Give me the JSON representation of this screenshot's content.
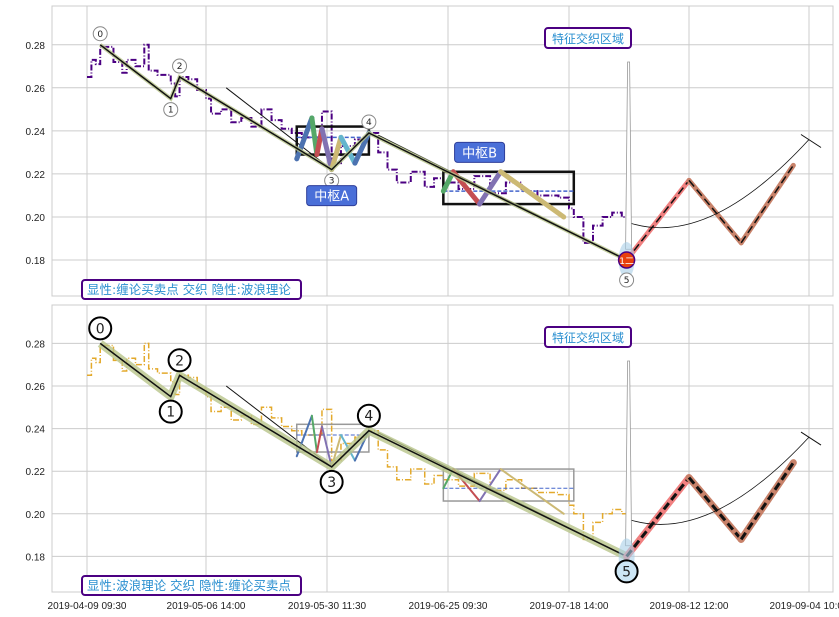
{
  "chart_data": [
    {
      "type": "line",
      "panel": "top",
      "annotation_label": "显性:缠论买卖点 交织 隐性:波浪理论",
      "zone_label": "特征交织区域",
      "zhongshu_labels": [
        "中枢A",
        "中枢B"
      ],
      "price_color": "#4b0082",
      "wave_point_marker": "1二",
      "wave_label_style": "small"
    },
    {
      "type": "line",
      "panel": "bottom",
      "annotation_label": "显性:波浪理论 交织 隐性:缠论买卖点",
      "zone_label": "特征交织区域",
      "zhongshu_labels": [],
      "price_color": "#e3a92b",
      "wave_label_style": "large"
    }
  ],
  "shared": {
    "ylim": [
      0.1633,
      0.298
    ],
    "xlim": [
      "2019-04-01",
      "2019-09-08"
    ],
    "y_ticks": [
      "0.18",
      "0.20",
      "0.22",
      "0.24",
      "0.26",
      "0.28"
    ],
    "x_ticks": [
      {
        "date": "2019-04-09",
        "label": "2019-04-09 09:30"
      },
      {
        "date": "2019-05-06",
        "label": "2019-05-06 14:00"
      },
      {
        "date": "2019-05-30",
        "label": "2019-05-30 11:30"
      },
      {
        "date": "2019-06-25",
        "label": "2019-06-25 09:30"
      },
      {
        "date": "2019-07-18",
        "label": "2019-07-18 14:00"
      },
      {
        "date": "2019-08-12",
        "label": "2019-08-12 12:00"
      },
      {
        "date": "2019-09-04",
        "label": "2019-09-04 10:00"
      }
    ],
    "grid": true,
    "price": [
      [
        "2019-04-09",
        0.265
      ],
      [
        "2019-04-10",
        0.273
      ],
      [
        "2019-04-11",
        0.271
      ],
      [
        "2019-04-12",
        0.279
      ],
      [
        "2019-04-15",
        0.272
      ],
      [
        "2019-04-17",
        0.267
      ],
      [
        "2019-04-18",
        0.273
      ],
      [
        "2019-04-20",
        0.27
      ],
      [
        "2019-04-22",
        0.28
      ],
      [
        "2019-04-23",
        0.268
      ],
      [
        "2019-04-25",
        0.266
      ],
      [
        "2019-04-27",
        0.266
      ],
      [
        "2019-04-28",
        0.262
      ],
      [
        "2019-04-29",
        0.256
      ],
      [
        "2019-04-30",
        0.265
      ],
      [
        "2019-05-02",
        0.264
      ],
      [
        "2019-05-04",
        0.259
      ],
      [
        "2019-05-06",
        0.255
      ],
      [
        "2019-05-07",
        0.248
      ],
      [
        "2019-05-09",
        0.25
      ],
      [
        "2019-05-11",
        0.244
      ],
      [
        "2019-05-13",
        0.246
      ],
      [
        "2019-05-15",
        0.242
      ],
      [
        "2019-05-17",
        0.25
      ],
      [
        "2019-05-19",
        0.245
      ],
      [
        "2019-05-21",
        0.241
      ],
      [
        "2019-05-23",
        0.239
      ],
      [
        "2019-05-25",
        0.237
      ],
      [
        "2019-05-28",
        0.237
      ],
      [
        "2019-05-29",
        0.249
      ],
      [
        "2019-05-30",
        0.249
      ],
      [
        "2019-05-31",
        0.225
      ],
      [
        "2019-06-02",
        0.233
      ],
      [
        "2019-06-05",
        0.236
      ],
      [
        "2019-06-08",
        0.239
      ],
      [
        "2019-06-10",
        0.23
      ],
      [
        "2019-06-12",
        0.222
      ],
      [
        "2019-06-14",
        0.216
      ],
      [
        "2019-06-17",
        0.221
      ],
      [
        "2019-06-20",
        0.214
      ],
      [
        "2019-06-22",
        0.218
      ],
      [
        "2019-06-24",
        0.216
      ],
      [
        "2019-06-27",
        0.213
      ],
      [
        "2019-06-30",
        0.219
      ],
      [
        "2019-07-03",
        0.211
      ],
      [
        "2019-07-06",
        0.216
      ],
      [
        "2019-07-09",
        0.212
      ],
      [
        "2019-07-12",
        0.21
      ],
      [
        "2019-07-16",
        0.209
      ],
      [
        "2019-07-18",
        0.204
      ],
      [
        "2019-07-19",
        0.2
      ],
      [
        "2019-07-21",
        0.188
      ],
      [
        "2019-07-23",
        0.196
      ],
      [
        "2019-07-25",
        0.2
      ],
      [
        "2019-07-27",
        0.202
      ],
      [
        "2019-07-29",
        0.2
      ],
      [
        "2019-07-30",
        0.185
      ]
    ],
    "waves": [
      {
        "label": "0",
        "date": "2019-04-12",
        "value": 0.28
      },
      {
        "label": "1",
        "date": "2019-04-28",
        "value": 0.255
      },
      {
        "label": "2",
        "date": "2019-04-30",
        "value": 0.265
      },
      {
        "label": "3",
        "date": "2019-05-31",
        "value": 0.222
      },
      {
        "label": "4",
        "date": "2019-06-08",
        "value": 0.239
      },
      {
        "label": "5",
        "date": "2019-07-30",
        "value": 0.18
      }
    ],
    "projection": [
      [
        "2019-07-30",
        0.18
      ],
      [
        "2019-08-12",
        0.217
      ],
      [
        "2019-08-22",
        0.188
      ],
      [
        "2019-09-01",
        0.224
      ]
    ],
    "projection_colors": [
      "#f08080",
      "#c8826a"
    ],
    "zhongshu": [
      {
        "start": "2019-05-24",
        "end": "2019-06-08",
        "high": 0.242,
        "low": 0.229,
        "mid": 0.237,
        "subwaves": [
          [
            "2019-05-24",
            0.227
          ],
          [
            "2019-05-27",
            0.246
          ],
          [
            "2019-05-28",
            0.229
          ],
          [
            "2019-05-29",
            0.241
          ],
          [
            "2019-05-31",
            0.222
          ],
          [
            "2019-06-02",
            0.237
          ],
          [
            "2019-06-05",
            0.225
          ],
          [
            "2019-06-08",
            0.239
          ]
        ]
      },
      {
        "start": "2019-06-24",
        "end": "2019-07-19",
        "high": 0.221,
        "low": 0.206,
        "mid": 0.212,
        "subwaves": [
          [
            "2019-06-24",
            0.212
          ],
          [
            "2019-06-26",
            0.221
          ],
          [
            "2019-07-01",
            0.206
          ],
          [
            "2019-07-05",
            0.221
          ],
          [
            "2019-07-17",
            0.2
          ]
        ]
      }
    ],
    "subwave_colors": [
      "#4c72b0",
      "#55a868",
      "#c44e52",
      "#8172b2",
      "#ccb974",
      "#64b5cd"
    ],
    "trend_lines": [
      [
        [
          "2019-05-10",
          0.26
        ],
        [
          "2019-05-31",
          0.222
        ]
      ],
      [
        [
          "2019-06-10",
          0.238
        ],
        [
          "2019-07-30",
          0.18
        ]
      ]
    ]
  }
}
